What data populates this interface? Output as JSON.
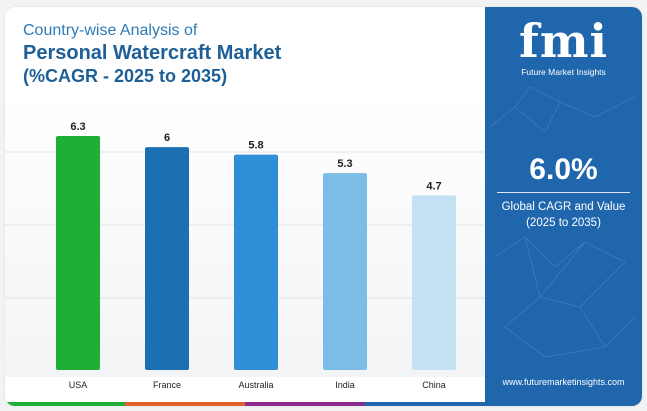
{
  "header": {
    "line1": "Country-wise Analysis of",
    "line2": "Personal Watercraft Market",
    "line3": "(%CAGR - 2025 to 2035)"
  },
  "chart_data": {
    "type": "bar",
    "categories": [
      "USA",
      "France",
      "Australia",
      "India",
      "China"
    ],
    "values": [
      6.3,
      6,
      5.8,
      5.3,
      4.7
    ],
    "value_labels": [
      "6.3",
      "6",
      "5.8",
      "5.3",
      "4.7"
    ],
    "bar_colors": [
      "#1fae38",
      "#1c6fb0",
      "#2f8fd6",
      "#7bbde6",
      "#c4e2f4"
    ],
    "ylim": [
      0,
      6.3
    ],
    "grid": true,
    "title": "",
    "xlabel": "",
    "ylabel": ""
  },
  "bottom_strip_colors": [
    "#1fae38",
    "#e0622a",
    "#8a2b8e",
    "#1f66ad"
  ],
  "side_panel": {
    "logo_mark": "fmi",
    "logo_text": "Future Market Insights",
    "kpi_value": "6.0%",
    "kpi_label_line1": "Global CAGR and Value",
    "kpi_label_line2": "(2025 to 2035)",
    "website": "www.futuremarketinsights.com"
  }
}
